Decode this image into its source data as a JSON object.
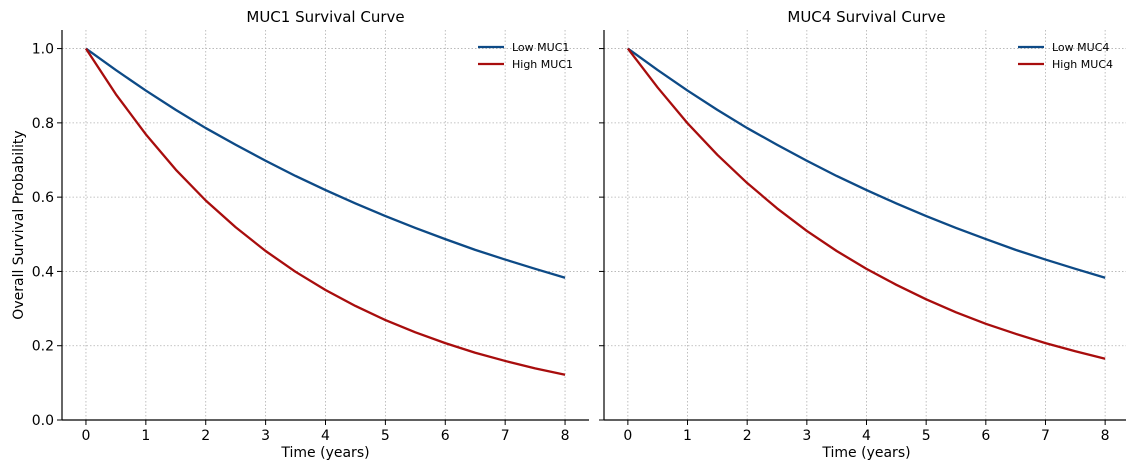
{
  "chart_data": [
    {
      "type": "line",
      "title": "MUC1 Survival Curve",
      "xlabel": "Time (years)",
      "ylabel": "Overall Survival Probability",
      "xlim": [
        -0.4,
        8.4
      ],
      "ylim": [
        0,
        1.05
      ],
      "xticks": [
        0,
        1,
        2,
        3,
        4,
        5,
        6,
        7,
        8
      ],
      "yticks": [
        0.0,
        0.2,
        0.4,
        0.6,
        0.8,
        1.0
      ],
      "grid": true,
      "legend_position": "top-right",
      "x": [
        0,
        0.5,
        1,
        1.5,
        2,
        2.5,
        3,
        3.5,
        4,
        4.5,
        5,
        5.5,
        6,
        6.5,
        7,
        7.5,
        8
      ],
      "series": [
        {
          "name": "Low MUC1",
          "color": "#0d4a86",
          "values": [
            1.0,
            0.942,
            0.887,
            0.835,
            0.786,
            0.741,
            0.698,
            0.657,
            0.619,
            0.583,
            0.549,
            0.517,
            0.487,
            0.458,
            0.432,
            0.407,
            0.383
          ]
        },
        {
          "name": "High MUC1",
          "color": "#a80d0d",
          "values": [
            1.0,
            0.877,
            0.769,
            0.674,
            0.591,
            0.519,
            0.455,
            0.399,
            0.35,
            0.307,
            0.269,
            0.236,
            0.207,
            0.181,
            0.159,
            0.139,
            0.122
          ]
        }
      ]
    },
    {
      "type": "line",
      "title": "MUC4 Survival Curve",
      "xlabel": "Time (years)",
      "ylabel": "",
      "xlim": [
        -0.4,
        8.4
      ],
      "ylim": [
        0,
        1.05
      ],
      "xticks": [
        0,
        1,
        2,
        3,
        4,
        5,
        6,
        7,
        8
      ],
      "yticks": [
        0.0,
        0.2,
        0.4,
        0.6,
        0.8,
        1.0
      ],
      "grid": true,
      "legend_position": "top-right",
      "x": [
        0,
        0.5,
        1,
        1.5,
        2,
        2.5,
        3,
        3.5,
        4,
        4.5,
        5,
        5.5,
        6,
        6.5,
        7,
        7.5,
        8
      ],
      "series": [
        {
          "name": "Low MUC4",
          "color": "#0d4a86",
          "values": [
            1.0,
            0.942,
            0.887,
            0.835,
            0.786,
            0.741,
            0.698,
            0.657,
            0.619,
            0.583,
            0.549,
            0.517,
            0.487,
            0.458,
            0.432,
            0.407,
            0.383
          ]
        },
        {
          "name": "High MUC4",
          "color": "#a80d0d",
          "values": [
            1.0,
            0.895,
            0.799,
            0.714,
            0.638,
            0.57,
            0.509,
            0.455,
            0.407,
            0.364,
            0.325,
            0.29,
            0.259,
            0.232,
            0.207,
            0.185,
            0.165
          ]
        }
      ]
    }
  ]
}
